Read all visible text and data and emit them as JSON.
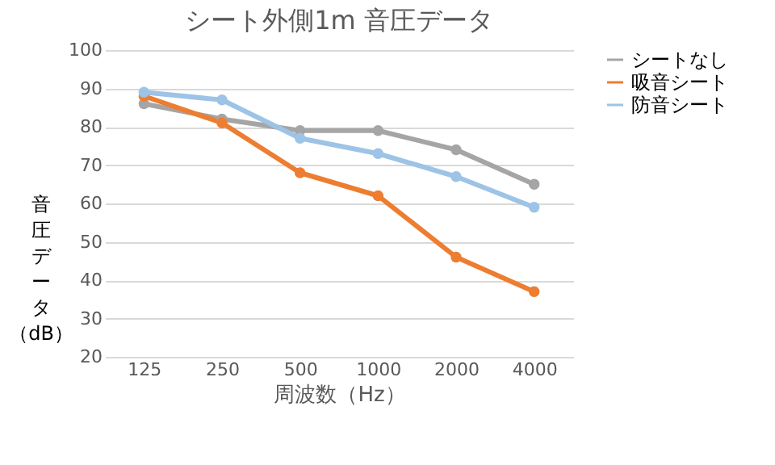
{
  "chart_data": {
    "type": "line",
    "title": "シート外側1m 音圧データ",
    "xlabel": "周波数（Hz）",
    "ylabel": "音圧データ（dB）",
    "categories": [
      "125",
      "250",
      "500",
      "1000",
      "2000",
      "4000"
    ],
    "series": [
      {
        "name": "シートなし",
        "color": "#a5a5a5",
        "values": [
          86,
          82,
          79,
          79,
          74,
          65
        ]
      },
      {
        "name": "吸音シート",
        "color": "#ed7d31",
        "values": [
          88,
          81,
          68,
          62,
          46,
          37
        ]
      },
      {
        "name": "防音シート",
        "color": "#9dc3e6",
        "values": [
          89,
          87,
          77,
          73,
          67,
          59
        ]
      }
    ],
    "ylim": [
      20,
      100
    ],
    "yticks": [
      20,
      30,
      40,
      50,
      60,
      70,
      80,
      90,
      100
    ],
    "grid": "y",
    "legend": "right",
    "marker": "circle",
    "line_style": "solid"
  }
}
